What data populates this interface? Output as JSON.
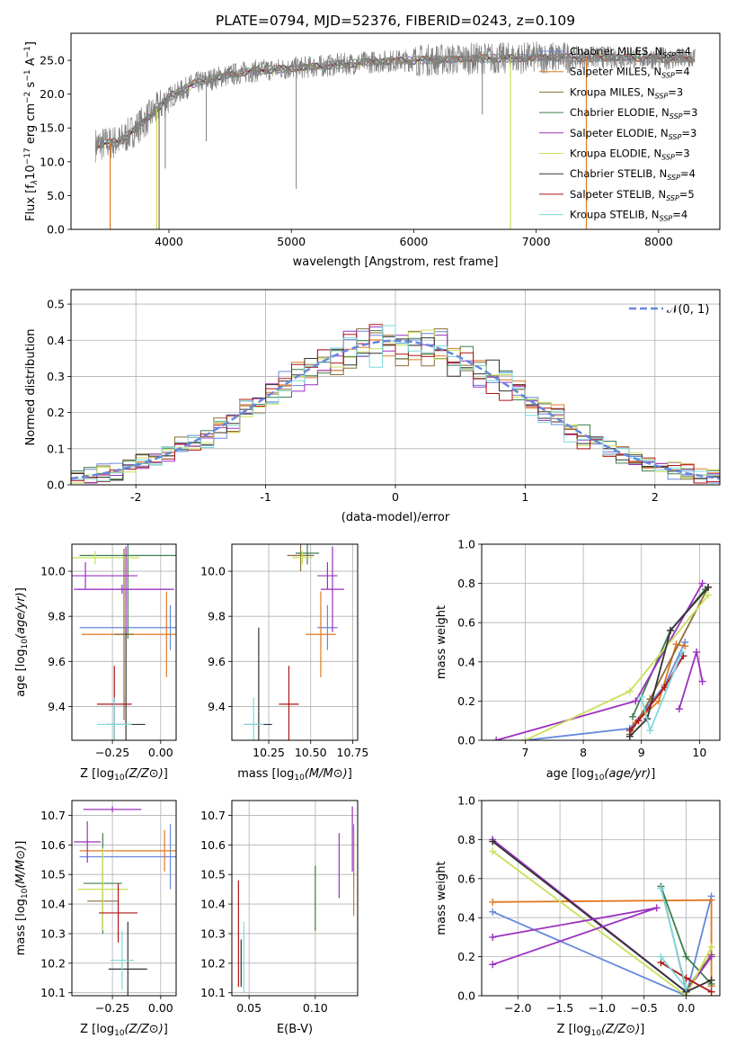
{
  "figure": {
    "title": "PLATE=0794, MJD=52376, FIBERID=0243, z=0.109"
  },
  "models": [
    {
      "name": "Chabrier MILES, N",
      "sub": "SSP",
      "eq": "=4",
      "color": "#6688dd"
    },
    {
      "name": "Salpeter MILES, N",
      "sub": "SSP",
      "eq": "=4",
      "color": "#e07a22"
    },
    {
      "name": "Kroupa MILES, N",
      "sub": "SSP",
      "eq": "=3",
      "color": "#8b6d3a"
    },
    {
      "name": "Chabrier ELODIE, N",
      "sub": "SSP",
      "eq": "=3",
      "color": "#3f7f4f"
    },
    {
      "name": "Salpeter ELODIE, N",
      "sub": "SSP",
      "eq": "=3",
      "color": "#9b30c0"
    },
    {
      "name": "Kroupa ELODIE, N",
      "sub": "SSP",
      "eq": "=3",
      "color": "#c8e05a"
    },
    {
      "name": "Chabrier STELIB, N",
      "sub": "SSP",
      "eq": "=4",
      "color": "#333333"
    },
    {
      "name": "Salpeter STELIB, N",
      "sub": "SSP",
      "eq": "=5",
      "color": "#b01515"
    },
    {
      "name": "Kroupa STELIB, N",
      "sub": "SSP",
      "eq": "=4",
      "color": "#7fd8dc"
    }
  ],
  "chart_data": [
    {
      "id": "spectrum",
      "type": "line",
      "xlabel": "wavelength [Angstrom, rest frame]",
      "ylabel_parts": [
        "Flux [f",
        "λ",
        "10",
        "−17",
        " erg cm",
        "−2",
        " s",
        "−1",
        " A",
        "−1",
        "]"
      ],
      "xlim": [
        3200,
        8500
      ],
      "ylim": [
        0,
        29
      ],
      "xticks": [
        4000,
        5000,
        6000,
        7000,
        8000
      ],
      "yticks": [
        0,
        5,
        10,
        15,
        20,
        25
      ],
      "data_color": "#808080",
      "continuum": {
        "x": [
          3400,
          3600,
          3800,
          4000,
          4200,
          4400,
          4600,
          4800,
          5000,
          5200,
          5400,
          5600,
          5800,
          6000,
          6200,
          6400,
          6600,
          6800,
          7000,
          7200,
          7400,
          7600,
          7800,
          8000,
          8200,
          8300
        ],
        "y": [
          12.5,
          13,
          16,
          19.5,
          21.5,
          22.5,
          23.2,
          23.6,
          23.8,
          24.1,
          24.4,
          24.7,
          24.9,
          25.0,
          25.1,
          25.2,
          25.3,
          25.3,
          25.4,
          25.4,
          25.4,
          25.4,
          25.4,
          25.3,
          25.2,
          25.2
        ]
      },
      "drops": [
        {
          "x": 3520,
          "color": "#e07a22"
        },
        {
          "x": 3900,
          "color": "#c8e05a"
        },
        {
          "x": 3920,
          "color": "#8b6d3a"
        },
        {
          "x": 6790,
          "color": "#c8e05a"
        },
        {
          "x": 7410,
          "color": "#e07a22"
        }
      ],
      "absorption_lines": [
        {
          "x": 5040,
          "y": 6
        },
        {
          "x": 4305,
          "y": 13
        },
        {
          "x": 3970,
          "y": 9
        },
        {
          "x": 6560,
          "y": 17
        }
      ],
      "legend": "right"
    },
    {
      "id": "residuals",
      "type": "histogram",
      "xlabel": "(data-model)/error",
      "ylabel": "Normed distribution",
      "xlim": [
        -2.5,
        2.5
      ],
      "ylim": [
        0,
        0.54
      ],
      "xticks": [
        -2,
        -1,
        0,
        1,
        2
      ],
      "yticks": [
        0.0,
        0.1,
        0.2,
        0.3,
        0.4,
        0.5
      ],
      "bin_width": 0.1,
      "gaussian": {
        "label": "𝒩(0, 1)",
        "color": "#6688dd"
      },
      "legend": "top-right",
      "grid": true
    },
    {
      "id": "z-age",
      "type": "errorbar",
      "xlabel": "Z [log10(Z/Z⊙)]",
      "ylabel": "age  [log10(age/yr)]",
      "xlim": [
        -0.46,
        0.08
      ],
      "ylim": [
        9.25,
        10.12
      ],
      "xticks": [
        -0.25,
        0.0
      ],
      "xticklabels": [
        "−0.25",
        "0.00"
      ],
      "yticks": [
        9.4,
        9.6,
        9.8,
        10.0
      ],
      "points": [
        {
          "m": 0,
          "x": 0.05,
          "y": 9.75,
          "xerr": 0.47,
          "yerr": 0.1
        },
        {
          "m": 1,
          "x": 0.03,
          "y": 9.72,
          "xerr": 0.44,
          "yerr": 0.19
        },
        {
          "m": 2,
          "x": -0.19,
          "y": 9.72,
          "xerr": 0.05,
          "yerr": 0.38
        },
        {
          "m": 3,
          "x": -0.17,
          "y": 10.07,
          "xerr": 0.25,
          "yerr": 0.37
        },
        {
          "m": 4,
          "x": -0.39,
          "y": 9.98,
          "xerr": 0.27,
          "yerr": 0.06
        },
        {
          "m": 5,
          "x": -0.34,
          "y": 10.06,
          "xerr": 0.23,
          "yerr": 0.03
        },
        {
          "m": 6,
          "x": -0.18,
          "y": 9.32,
          "xerr": 0.1,
          "yerr": 0.43
        },
        {
          "m": 7,
          "x": -0.24,
          "y": 9.41,
          "xerr": 0.09,
          "yerr": 0.17
        },
        {
          "m": 8,
          "x": -0.24,
          "y": 9.32,
          "xerr": 0.09,
          "yerr": 0.12
        },
        {
          "m": 4,
          "x": -0.2,
          "y": 9.92,
          "xerr": 0.25,
          "yerr": 0.02
        },
        {
          "m": 4,
          "x": -0.18,
          "y": 9.92,
          "xerr": 0.25,
          "yerr": 0.19
        }
      ],
      "grid": true
    },
    {
      "id": "mass-age",
      "type": "errorbar",
      "xlabel": "mass [log10(M/M⊙)]",
      "ylabel": "",
      "xlim": [
        10.03,
        10.78
      ],
      "ylim": [
        9.25,
        10.12
      ],
      "xticks": [
        10.25,
        10.5,
        10.75
      ],
      "xticklabels": [
        "10.25",
        "10.50",
        "10.75"
      ],
      "yticks": [
        9.4,
        9.6,
        9.8,
        10.0
      ],
      "points": [
        {
          "m": 0,
          "x": 10.6,
          "y": 9.75,
          "xerr": 0.06,
          "yerr": 0.1
        },
        {
          "m": 1,
          "x": 10.56,
          "y": 9.72,
          "xerr": 0.09,
          "yerr": 0.19
        },
        {
          "m": 2,
          "x": 10.44,
          "y": 10.07,
          "xerr": 0.08,
          "yerr": 0.07
        },
        {
          "m": 3,
          "x": 10.48,
          "y": 10.08,
          "xerr": 0.07,
          "yerr": 0.05
        },
        {
          "m": 4,
          "x": 10.6,
          "y": 9.98,
          "xerr": 0.06,
          "yerr": 0.06
        },
        {
          "m": 5,
          "x": 10.45,
          "y": 10.06,
          "xerr": 0.06,
          "yerr": 0.03
        },
        {
          "m": 6,
          "x": 10.19,
          "y": 9.32,
          "xerr": 0.08,
          "yerr": 0.43
        },
        {
          "m": 7,
          "x": 10.37,
          "y": 9.41,
          "xerr": 0.06,
          "yerr": 0.17
        },
        {
          "m": 8,
          "x": 10.16,
          "y": 9.32,
          "xerr": 0.06,
          "yerr": 0.12
        },
        {
          "m": 4,
          "x": 10.63,
          "y": 9.92,
          "xerr": 0.07,
          "yerr": 0.19
        }
      ],
      "grid": true
    },
    {
      "id": "weight-age",
      "type": "line",
      "xlabel": "age  [log10(age/yr)]",
      "ylabel": "mass weight",
      "xlim": [
        6.25,
        10.35
      ],
      "ylim": [
        0.0,
        1.0
      ],
      "xticks": [
        7,
        8,
        9,
        10
      ],
      "yticks": [
        0.0,
        0.2,
        0.4,
        0.6,
        0.8,
        1.0
      ],
      "series": [
        {
          "m": 0,
          "x": [
            7.0,
            8.8,
            9.4,
            9.75
          ],
          "y": [
            0.0,
            0.06,
            0.28,
            0.5
          ]
        },
        {
          "m": 1,
          "x": [
            8.9,
            9.3,
            9.6,
            9.75
          ],
          "y": [
            0.09,
            0.2,
            0.49,
            0.48
          ]
        },
        {
          "m": 2,
          "x": [
            8.8,
            9.15,
            10.15
          ],
          "y": [
            0.03,
            0.21,
            0.78
          ]
        },
        {
          "m": 3,
          "x": [
            8.85,
            9.5,
            10.1
          ],
          "y": [
            0.12,
            0.56,
            0.77
          ]
        },
        {
          "m": 4,
          "x": [
            6.5,
            8.9,
            10.05
          ],
          "y": [
            0.0,
            0.2,
            0.8
          ]
        },
        {
          "m": 5,
          "x": [
            7.0,
            8.8,
            10.15
          ],
          "y": [
            0.0,
            0.25,
            0.74
          ]
        },
        {
          "m": 6,
          "x": [
            8.8,
            9.1,
            9.5,
            10.15
          ],
          "y": [
            0.02,
            0.11,
            0.56,
            0.78
          ]
        },
        {
          "m": 7,
          "x": [
            8.8,
            8.95,
            9.4,
            9.72
          ],
          "y": [
            0.05,
            0.1,
            0.27,
            0.43
          ]
        },
        {
          "m": 8,
          "x": [
            9.0,
            9.15,
            9.7
          ],
          "y": [
            0.22,
            0.05,
            0.45
          ]
        },
        {
          "m": 4,
          "x": [
            9.65,
            9.95,
            10.05
          ],
          "y": [
            0.16,
            0.45,
            0.3
          ]
        }
      ],
      "grid": true
    },
    {
      "id": "z-mass",
      "type": "errorbar",
      "xlabel": "Z [log10(Z/Z⊙)]",
      "ylabel": "mass [log10(M/M⊙)]",
      "xlim": [
        -0.46,
        0.08
      ],
      "ylim": [
        10.09,
        10.75
      ],
      "xticks": [
        -0.25,
        0.0
      ],
      "xticklabels": [
        "−0.25",
        "0.00"
      ],
      "yticks": [
        10.1,
        10.2,
        10.3,
        10.4,
        10.5,
        10.6,
        10.7
      ],
      "points": [
        {
          "m": 0,
          "x": 0.05,
          "y": 10.56,
          "xerr": 0.47,
          "yerr": 0.11
        },
        {
          "m": 1,
          "x": 0.02,
          "y": 10.58,
          "xerr": 0.44,
          "yerr": 0.07
        },
        {
          "m": 2,
          "x": -0.3,
          "y": 10.41,
          "xerr": 0.08,
          "yerr": 0.1
        },
        {
          "m": 3,
          "x": -0.3,
          "y": 10.47,
          "xerr": 0.1,
          "yerr": 0.17
        },
        {
          "m": 4,
          "x": -0.38,
          "y": 10.61,
          "xerr": 0.07,
          "yerr": 0.07
        },
        {
          "m": 5,
          "x": -0.3,
          "y": 10.45,
          "xerr": 0.13,
          "yerr": 0.14
        },
        {
          "m": 6,
          "x": -0.17,
          "y": 10.18,
          "xerr": 0.1,
          "yerr": 0.16
        },
        {
          "m": 7,
          "x": -0.22,
          "y": 10.37,
          "xerr": 0.1,
          "yerr": 0.1
        },
        {
          "m": 8,
          "x": -0.2,
          "y": 10.21,
          "xerr": 0.06,
          "yerr": 0.1
        },
        {
          "m": 4,
          "x": -0.25,
          "y": 10.72,
          "xerr": 0.15,
          "yerr": 0.01
        }
      ],
      "grid": true
    },
    {
      "id": "ebv-mass",
      "type": "errorbar",
      "xlabel": "E(B-V)",
      "ylabel": "",
      "xlim": [
        0.037,
        0.132
      ],
      "ylim": [
        10.09,
        10.75
      ],
      "xticks": [
        0.05,
        0.1
      ],
      "xticklabels": [
        "0.05",
        "0.10"
      ],
      "yticks": [
        10.1,
        10.2,
        10.3,
        10.4,
        10.5,
        10.6,
        10.7
      ],
      "points": [
        {
          "m": 0,
          "x": 0.129,
          "y": 10.56,
          "xerr": 0,
          "yerr": 0.11
        },
        {
          "m": 1,
          "x": 0.129,
          "y": 10.5,
          "xerr": 0,
          "yerr": 0.14
        },
        {
          "m": 4,
          "x": 0.118,
          "y": 10.53,
          "xerr": 0,
          "yerr": 0.11
        },
        {
          "m": 4,
          "x": 0.128,
          "y": 10.62,
          "xerr": 0,
          "yerr": 0.11
        },
        {
          "m": 5,
          "x": 0.1,
          "y": 10.42,
          "xerr": 0,
          "yerr": 0.12
        },
        {
          "m": 3,
          "x": 0.1,
          "y": 10.42,
          "xerr": 0,
          "yerr": 0.11
        },
        {
          "m": 7,
          "x": 0.042,
          "y": 10.3,
          "xerr": 0,
          "yerr": 0.18
        },
        {
          "m": 6,
          "x": 0.044,
          "y": 10.2,
          "xerr": 0,
          "yerr": 0.08
        },
        {
          "m": 8,
          "x": 0.046,
          "y": 10.22,
          "xerr": 0,
          "yerr": 0.12
        }
      ],
      "grid": true
    },
    {
      "id": "weight-z",
      "type": "line",
      "xlabel": "Z [log10(Z/Z⊙)]",
      "ylabel": "mass weight",
      "xlim": [
        -2.43,
        0.4
      ],
      "ylim": [
        0.0,
        1.0
      ],
      "xticks": [
        -2.0,
        -1.5,
        -1.0,
        -0.5,
        0.0
      ],
      "xticklabels": [
        "−2.0",
        "−1.5",
        "−1.0",
        "−0.5",
        "0.0"
      ],
      "yticks": [
        0.0,
        0.2,
        0.4,
        0.6,
        0.8,
        1.0
      ],
      "series": [
        {
          "m": 0,
          "x": [
            -2.3,
            0.0,
            0.3
          ],
          "y": [
            0.43,
            0.0,
            0.51
          ]
        },
        {
          "m": 1,
          "x": [
            -2.3,
            0.3,
            0.3
          ],
          "y": [
            0.48,
            0.49,
            0.05
          ]
        },
        {
          "m": 2,
          "x": [
            -0.3,
            0.0,
            0.3
          ],
          "y": [
            0.56,
            0.03,
            0.21
          ]
        },
        {
          "m": 3,
          "x": [
            -0.3,
            0.0,
            0.3
          ],
          "y": [
            0.56,
            0.2,
            0.06
          ]
        },
        {
          "m": 4,
          "x": [
            -2.3,
            0.0,
            0.3
          ],
          "y": [
            0.8,
            0.02,
            0.2
          ]
        },
        {
          "m": 5,
          "x": [
            -2.3,
            0.0,
            0.3
          ],
          "y": [
            0.74,
            0.0,
            0.25
          ]
        },
        {
          "m": 6,
          "x": [
            -2.3,
            0.0,
            0.3
          ],
          "y": [
            0.79,
            0.02,
            0.08
          ]
        },
        {
          "m": 7,
          "x": [
            -0.3,
            0.0,
            0.3
          ],
          "y": [
            0.17,
            0.09,
            0.02
          ]
        },
        {
          "m": 8,
          "x": [
            -0.3,
            0.0,
            -0.3
          ],
          "y": [
            0.55,
            0.04,
            0.2
          ]
        },
        {
          "m": 4,
          "x": [
            -2.3,
            -0.35,
            -2.3
          ],
          "y": [
            0.16,
            0.45,
            0.3
          ]
        }
      ],
      "grid": true
    }
  ]
}
